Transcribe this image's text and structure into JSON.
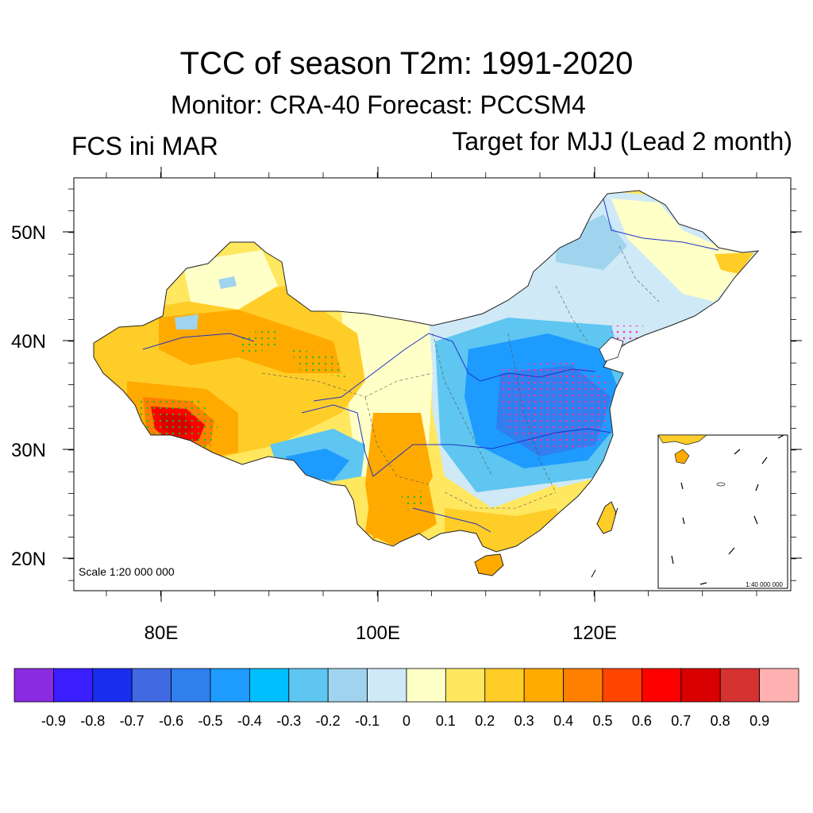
{
  "header": {
    "title": "TCC of season T2m: 1991-2020",
    "subtitle": "Monitor: CRA-40   Forecast: PCCSM4",
    "left_label": "FCS ini MAR",
    "right_label": "Target for MJJ (Lead 2 month)"
  },
  "map": {
    "lat_ticks": [
      "50N",
      "40N",
      "30N",
      "20N"
    ],
    "lon_ticks": [
      "80E",
      "100E",
      "120E"
    ],
    "scale_main": "Scale 1:20 000 000",
    "scale_inset": "1:40 000 000"
  },
  "colorbar": {
    "labels": [
      "-0.9",
      "-0.8",
      "-0.7",
      "-0.6",
      "-0.5",
      "-0.4",
      "-0.3",
      "-0.2",
      "-0.1",
      "0",
      "0.1",
      "0.2",
      "0.3",
      "0.4",
      "0.5",
      "0.6",
      "0.7",
      "0.8",
      "0.9"
    ],
    "colors": [
      "#8a2be2",
      "#3a1eff",
      "#1a2eef",
      "#4169e1",
      "#2f7fef",
      "#1e9bff",
      "#00bfff",
      "#5ec6f0",
      "#a0d4ee",
      "#cfe9f7",
      "#ffffc8",
      "#ffe860",
      "#ffcd28",
      "#ffaa00",
      "#ff8000",
      "#ff4500",
      "#ff0000",
      "#d80000",
      "#d63232",
      "#ffb0b0"
    ]
  },
  "colors": {
    "frame": "#000000",
    "river": "#1f33c8",
    "stipple_positive": "#22bb22",
    "stipple_negative": "#ff33aa"
  }
}
